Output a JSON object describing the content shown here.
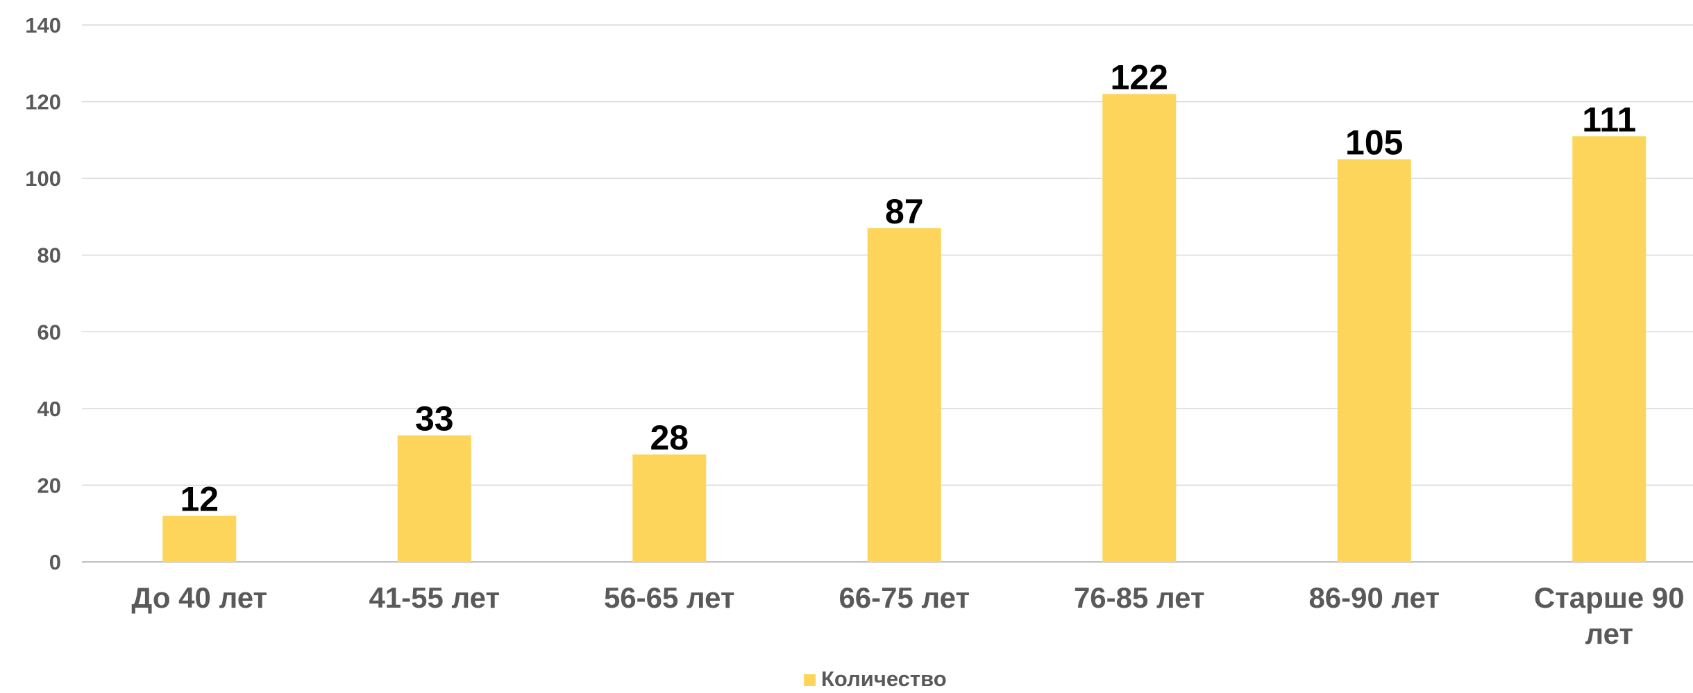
{
  "chart_data": {
    "type": "bar",
    "categories": [
      "До 40 лет",
      "41-55 лет",
      "56-65 лет",
      "66-75 лет",
      "76-85 лет",
      "86-90 лет",
      "Старше 90 лет"
    ],
    "category_lines": [
      [
        "До 40 лет"
      ],
      [
        "41-55 лет"
      ],
      [
        "56-65 лет"
      ],
      [
        "66-75 лет"
      ],
      [
        "76-85 лет"
      ],
      [
        "86-90 лет"
      ],
      [
        "Старше 90",
        "лет"
      ]
    ],
    "series": [
      {
        "name": "Количество",
        "values": [
          12,
          33,
          28,
          87,
          122,
          105,
          111
        ],
        "color": "#FDD55A"
      }
    ],
    "ylim": [
      0,
      140
    ],
    "yticks": [
      0,
      20,
      40,
      60,
      80,
      100,
      120,
      140
    ],
    "grid": true,
    "legend": "bottom-center",
    "title": "",
    "xlabel": "",
    "ylabel": ""
  }
}
